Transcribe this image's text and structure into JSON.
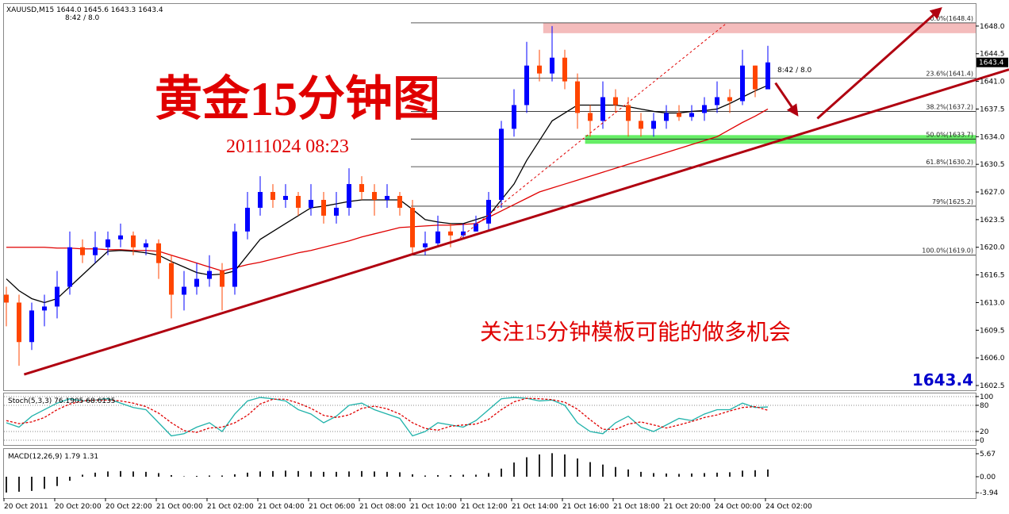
{
  "chart_data": [
    {
      "type": "candlestick",
      "header": "XAUUSD,M15  1644.0 1645.6 1643.3 1643.4",
      "timer": "8:42 / 8.0",
      "title": "黄金15分钟图",
      "subtitle": "20111024 08:23",
      "annotation": "关注15分钟模板可能的做多机会",
      "up_color": "#0000ff",
      "down_color": "#ff4500",
      "ylim": [
        1601.9,
        1650.9
      ],
      "yticks": [
        {
          "value": 1648,
          "label": "1648.0"
        },
        1644.5,
        {
          "value": 1641,
          "label": "1641.0"
        },
        1637.5,
        {
          "value": 1634,
          "label": "1634.0"
        },
        1630.5,
        {
          "value": 1627,
          "label": "1627.0"
        },
        1623.5,
        {
          "value": 1620,
          "label": "1620.0"
        },
        1616.5,
        {
          "value": 1613,
          "label": "1613.0"
        },
        1609.5,
        {
          "value": 1606,
          "label": "1606.0"
        },
        1602.5
      ],
      "categories": [
        "20 Oct 2011",
        null,
        null,
        null,
        "20 Oct 20:00",
        null,
        null,
        null,
        "20 Oct 22:00",
        null,
        null,
        null,
        "21 Oct 00:00",
        null,
        null,
        null,
        "21 Oct 02:00",
        null,
        null,
        null,
        "21 Oct 04:00",
        null,
        null,
        null,
        "21 Oct 06:00",
        null,
        null,
        null,
        "21 Oct 08:00",
        null,
        null,
        null,
        "21 Oct 10:00",
        null,
        null,
        null,
        "21 Oct 12:00",
        null,
        null,
        null,
        "21 Oct 14:00",
        null,
        null,
        null,
        "21 Oct 16:00",
        null,
        null,
        null,
        "21 Oct 18:00",
        null,
        null,
        null,
        "21 Oct 20:00",
        null,
        null,
        null,
        "24 Oct 00:00",
        null,
        null,
        null,
        "24 Oct 02:00"
      ],
      "open": [
        1614,
        1613,
        1608,
        1612,
        1612.5,
        1615,
        1620,
        1619,
        1620,
        1621,
        1621.5,
        1620,
        1620.5,
        1618,
        1614,
        1615,
        1616,
        1617,
        1615,
        1622,
        1625,
        1627,
        1626,
        1626.5,
        1625,
        1626,
        1624,
        1625,
        1628,
        1627,
        1626,
        1626.5,
        1625,
        1620,
        1620.5,
        1622,
        1621.5,
        1622,
        1623,
        1626,
        1635,
        1638,
        1643,
        1642,
        1644,
        1641,
        1637,
        1636,
        1639,
        1638,
        1636,
        1635,
        1636,
        1637,
        1636.5,
        1637,
        1638,
        1639,
        1638.5,
        1643,
        1640
      ],
      "high": [
        1615,
        1614,
        1613,
        1614,
        1617,
        1622,
        1621,
        1622,
        1622,
        1623,
        1622,
        1621,
        1621,
        1619,
        1617,
        1618,
        1619,
        1618,
        1623,
        1627,
        1629,
        1628,
        1628,
        1627,
        1628,
        1627,
        1627,
        1630,
        1629,
        1628,
        1628,
        1627,
        1626,
        1622,
        1624,
        1623,
        1623,
        1624,
        1627,
        1636,
        1640,
        1646,
        1645,
        1648,
        1645,
        1642,
        1638,
        1641,
        1640,
        1639,
        1637,
        1637,
        1638,
        1638,
        1638,
        1639,
        1641,
        1640,
        1645,
        1643,
        1645.5
      ],
      "low": [
        1610,
        1605,
        1607,
        1610,
        1611,
        1614,
        1618,
        1618,
        1619,
        1620,
        1619,
        1619,
        1616,
        1611,
        1612,
        1614,
        1615,
        1612,
        1614,
        1621,
        1624,
        1625,
        1625,
        1624,
        1624,
        1623,
        1623,
        1624,
        1626,
        1624,
        1625,
        1624,
        1619,
        1619,
        1620,
        1620,
        1621,
        1622,
        1622,
        1625,
        1634,
        1637,
        1641,
        1641,
        1640,
        1635,
        1634,
        1635,
        1637,
        1634,
        1634,
        1634,
        1635,
        1636,
        1636,
        1636,
        1637,
        1637,
        1638,
        1639,
        1640
      ],
      "close": [
        1613,
        1608,
        1612,
        1612.5,
        1615,
        1620,
        1619,
        1620,
        1621,
        1621.5,
        1620,
        1620.5,
        1618,
        1614,
        1615,
        1616,
        1617,
        1615,
        1622,
        1625,
        1627,
        1626,
        1626.5,
        1625,
        1626,
        1624,
        1625,
        1628,
        1627,
        1626,
        1626.5,
        1625,
        1620,
        1620.5,
        1622,
        1621.5,
        1622,
        1623,
        1626,
        1635,
        1638,
        1643,
        1642,
        1644,
        1641,
        1637,
        1636,
        1639,
        1638,
        1636,
        1635,
        1636,
        1637,
        1636.5,
        1637,
        1638,
        1639,
        1638.5,
        1643,
        1640,
        1643.4
      ],
      "series": [
        {
          "color": "#e00000",
          "values": [
            1620,
            1620,
            1620,
            1620,
            1619.9,
            1619.9,
            1619.8,
            1619.8,
            1619.7,
            1619.7,
            1619.6,
            1619.6,
            1619.5,
            1619,
            1618.5,
            1618,
            1617.5,
            1617,
            1617.4,
            1617.8,
            1618.1,
            1618.5,
            1618.9,
            1619.3,
            1619.6,
            1620,
            1620.4,
            1620.8,
            1621.3,
            1621.7,
            1622.1,
            1622.5,
            1622.6,
            1622.7,
            1622.8,
            1622.8,
            1622.9,
            1623,
            1623.8,
            1624.6,
            1625.4,
            1626.2,
            1627,
            1627.5,
            1628,
            1628.5,
            1629,
            1629.5,
            1630,
            1630.5,
            1631,
            1631.5,
            1632,
            1632.5,
            1633,
            1633.5,
            1634,
            1634.9,
            1635.8,
            1636.6,
            1637.5
          ]
        },
        {
          "color": "#000000",
          "values": [
            1616,
            1614.5,
            1613.5,
            1613,
            1613.5,
            1615,
            1616.5,
            1618,
            1619.5,
            1619.6,
            1619.5,
            1619.3,
            1619,
            1618.2,
            1617.5,
            1616.8,
            1616.5,
            1616.6,
            1617,
            1619,
            1621,
            1622,
            1623,
            1624,
            1625,
            1625.2,
            1625.5,
            1625.8,
            1626,
            1626,
            1626,
            1626,
            1624.8,
            1623.5,
            1623.2,
            1623,
            1623,
            1623.5,
            1624,
            1626,
            1628,
            1631,
            1633.5,
            1636,
            1637,
            1638,
            1638,
            1638,
            1638,
            1637.8,
            1637.5,
            1637.2,
            1637,
            1637,
            1637.2,
            1637.3,
            1637.5,
            1638.2,
            1639,
            1639.8,
            1640.5
          ]
        }
      ],
      "fib_levels": [
        {
          "value": 1648.4,
          "label": "0.0%(1648.4)"
        },
        {
          "value": 1641.4,
          "label": "23.6%(1641.4)"
        },
        {
          "value": 1637.2,
          "label": "38.2%(1637.2)"
        },
        {
          "value": 1633.7,
          "label": "50.0%(1633.7)"
        },
        {
          "value": 1630.2,
          "label": "61.8%(1630.2)"
        },
        {
          "value": 1625.2,
          "label": "79%(1625.2)"
        },
        {
          "value": 1619,
          "label": "100.0%(1619.0)"
        }
      ],
      "zones": [
        {
          "range": [
            1647.1,
            1648.4
          ],
          "start": 42.3,
          "color": "#f4bcbc"
        },
        {
          "range": [
            1633.1,
            1634.2
          ],
          "start": 45.6,
          "color": "#66ee66"
        }
      ],
      "trendlines": [
        {
          "points": [
            [
              1.4,
              1603.9
            ],
            [
              79,
              1642.5
            ]
          ],
          "color": "#b00010",
          "width": 3
        },
        {
          "points": [
            [
              35.75,
              1621.2
            ],
            [
              56.7,
              1648.3
            ]
          ],
          "color": "#e00000",
          "width": 1,
          "dash": true
        },
        {
          "points": [
            [
              63.9,
              1636.3
            ],
            [
              73.6,
              1650.2
            ]
          ],
          "color": "#b00010",
          "width": 3,
          "arrow": true
        },
        {
          "points": [
            [
              60.6,
              1640.8
            ],
            [
              62.3,
              1636.8
            ]
          ],
          "color": "#b00010",
          "width": 3,
          "arrow": true
        }
      ]
    },
    {
      "type": "line",
      "title": "Stoch(5,3,3) 76.1905 68.6135",
      "ylim": [
        -12.7,
        109
      ],
      "yticks": [
        100,
        80,
        20,
        0
      ],
      "series": [
        {
          "color": "#20b2aa",
          "values": [
            40,
            30,
            55,
            70,
            85,
            95,
            90,
            92,
            95,
            85,
            75,
            70,
            40,
            10,
            15,
            30,
            40,
            20,
            60,
            90,
            98,
            95,
            90,
            70,
            60,
            40,
            55,
            80,
            85,
            70,
            60,
            50,
            10,
            20,
            40,
            35,
            30,
            45,
            70,
            95,
            98,
            96,
            90,
            92,
            80,
            40,
            20,
            15,
            40,
            55,
            30,
            20,
            35,
            50,
            45,
            60,
            70,
            70,
            85,
            75,
            76.2
          ]
        },
        {
          "color": "#e00000",
          "dash": true,
          "values": [
            45,
            38,
            42,
            52,
            70,
            83,
            90,
            92,
            92,
            90,
            85,
            77,
            62,
            40,
            22,
            18,
            28,
            30,
            40,
            57,
            83,
            94,
            94,
            85,
            73,
            57,
            52,
            58,
            73,
            78,
            72,
            60,
            40,
            27,
            23,
            32,
            35,
            37,
            48,
            70,
            88,
            96,
            95,
            93,
            87,
            71,
            47,
            25,
            25,
            37,
            42,
            35,
            28,
            35,
            43,
            52,
            58,
            67,
            75,
            77,
            68.6
          ]
        }
      ]
    },
    {
      "type": "bar",
      "title": "MACD(12,26,9) 1.79 1.31",
      "ylim": [
        -5.28,
        7.04
      ],
      "yticks": [
        5.67,
        {
          "value": 0,
          "label": "0.00"
        },
        -3.94
      ],
      "color": "#222222",
      "values": [
        -3.9,
        -3.7,
        -3.5,
        -3,
        -2.3,
        -1,
        0.5,
        1,
        1.3,
        1.4,
        1.3,
        1.2,
        0.9,
        0.4,
        0.1,
        0.2,
        0.3,
        0.3,
        0.6,
        1,
        1.3,
        1.4,
        1.5,
        1.4,
        1.3,
        1.2,
        1.2,
        1.3,
        1.4,
        1.3,
        1.2,
        1.1,
        0.6,
        0.3,
        0.4,
        0.4,
        0.5,
        0.5,
        0.9,
        2,
        3.5,
        4.8,
        5.5,
        5.8,
        5.5,
        4.5,
        3.6,
        3,
        2.4,
        1.8,
        1.2,
        0.9,
        0.8,
        0.7,
        0.8,
        0.9,
        1,
        1.1,
        1.5,
        1.6,
        1.79
      ]
    }
  ]
}
